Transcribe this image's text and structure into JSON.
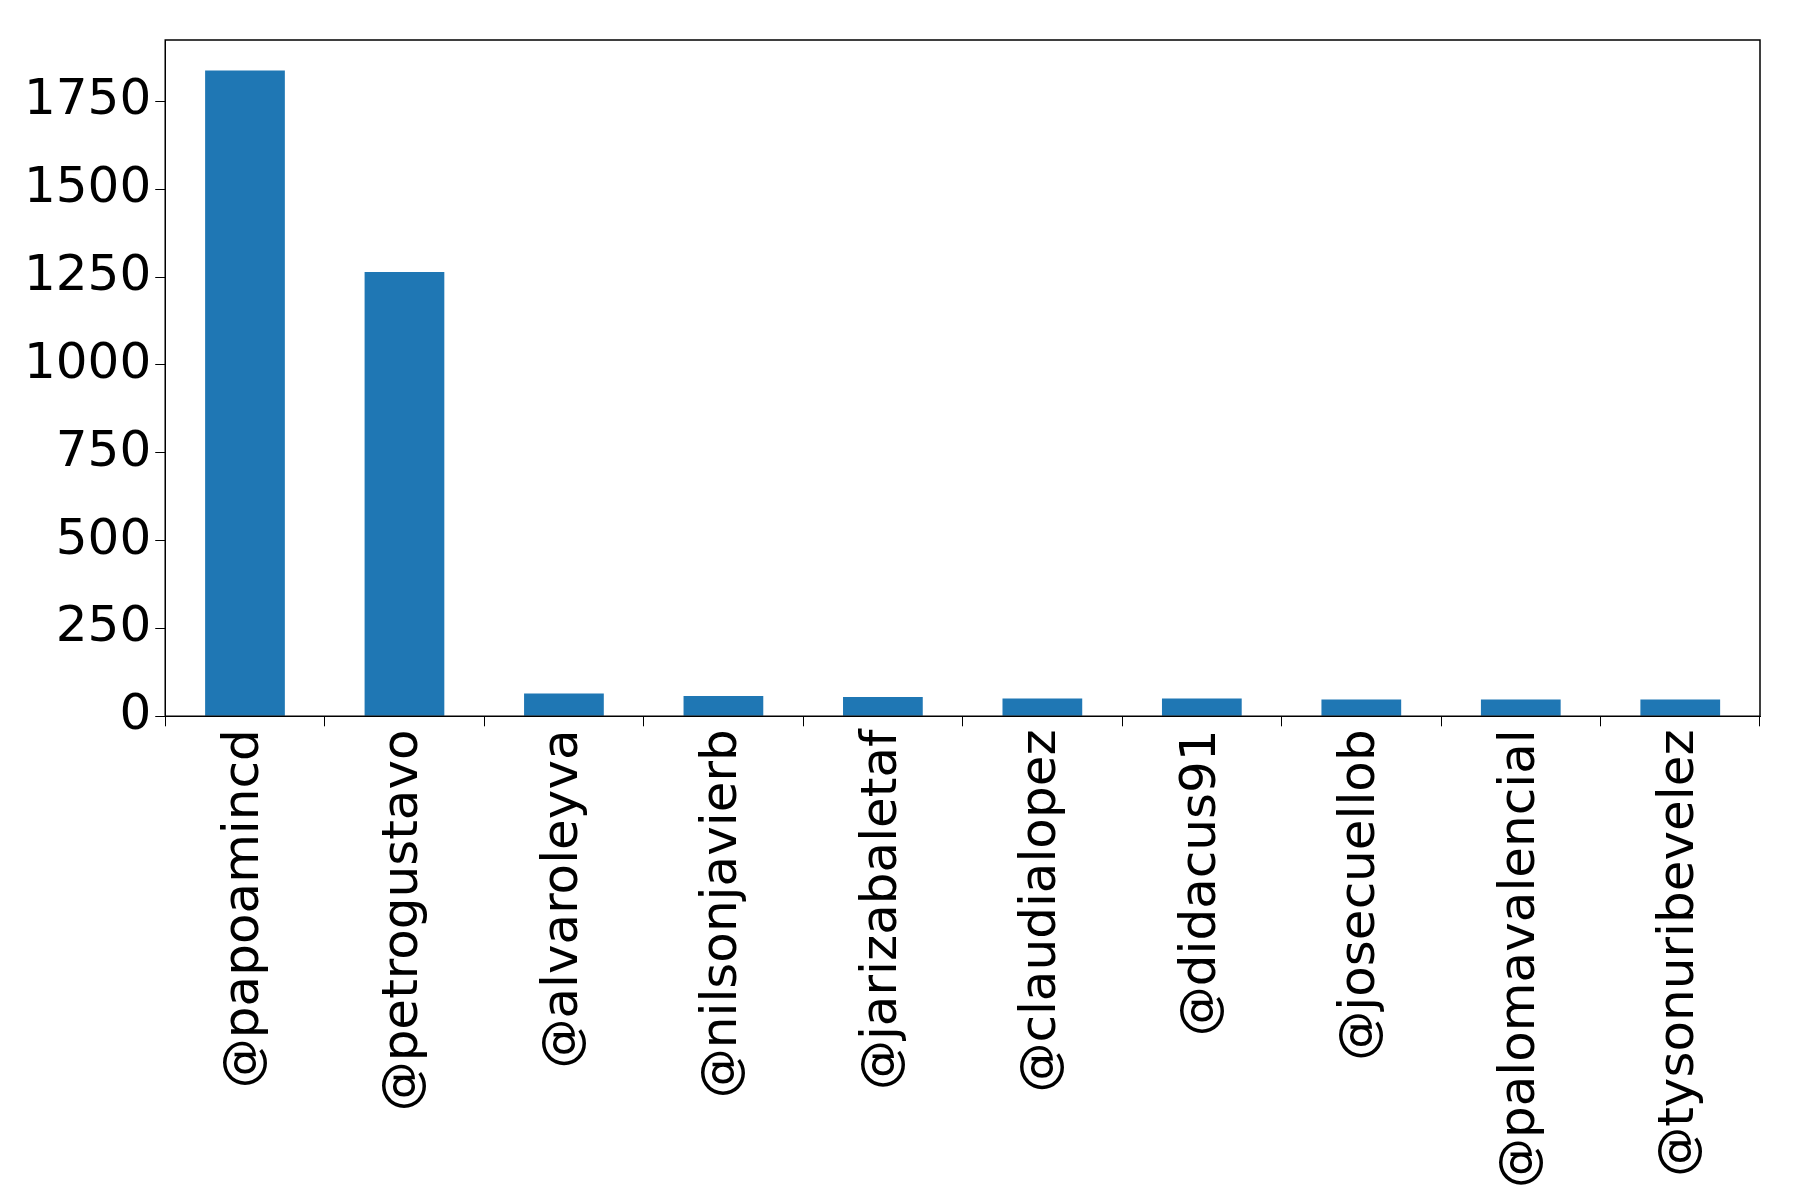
{
  "chart_data": {
    "type": "bar",
    "categories": [
      "@papoamincd",
      "@petrogustavo",
      "@alvaroleyva",
      "@nilsonjavierb",
      "@jarizabaletaf",
      "@claudialopez",
      "@didacus91",
      "@josecuellob",
      "@palomavalencial",
      "@tysonuribevelez"
    ],
    "values": [
      1838,
      1265,
      65,
      58,
      55,
      51,
      51,
      48,
      48,
      48
    ],
    "color": "#1f77b4",
    "ylim": [
      0,
      1925
    ],
    "yticks": [
      0,
      250,
      500,
      750,
      1000,
      1250,
      1500,
      1750
    ],
    "grid": false,
    "legend": false
  }
}
